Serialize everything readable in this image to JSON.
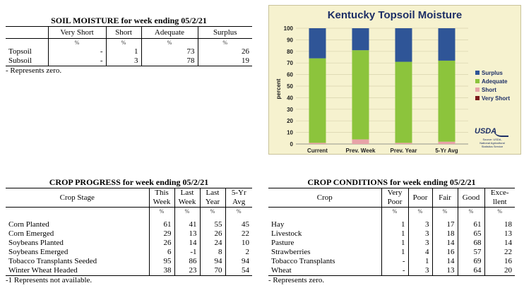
{
  "soil": {
    "title": "SOIL MOISTURE for week ending 05/2/21",
    "columns": [
      "Very Short",
      "Short",
      "Adequate",
      "Surplus"
    ],
    "pct": "%",
    "rows": [
      {
        "label": "Topsoil",
        "values": [
          "-",
          "1",
          "73",
          "26"
        ]
      },
      {
        "label": "Subsoil",
        "values": [
          "-",
          "3",
          "78",
          "19"
        ]
      }
    ],
    "note": "- Represents zero."
  },
  "progress": {
    "title": "CROP PROGRESS for week ending 05/2/21",
    "stage_header": "Crop Stage",
    "col_this": [
      "This",
      "Week"
    ],
    "col_last": [
      "Last",
      "Week"
    ],
    "col_lastyear": [
      "Last",
      "Year"
    ],
    "col_avg": [
      "5-Yr",
      "Avg"
    ],
    "pct": "%",
    "rows": [
      {
        "label": "Corn Planted",
        "values": [
          "61",
          "41",
          "55",
          "45"
        ]
      },
      {
        "label": "Corn Emerged",
        "values": [
          "29",
          "13",
          "26",
          "22"
        ]
      },
      {
        "label": "Soybeans Planted",
        "values": [
          "26",
          "14",
          "24",
          "10"
        ]
      },
      {
        "label": "Soybeans Emerged",
        "values": [
          "6",
          "-1",
          "8",
          "2"
        ]
      },
      {
        "label": "Tobacco Transplants Seeded",
        "values": [
          "95",
          "86",
          "94",
          "94"
        ]
      },
      {
        "label": "Winter Wheat Headed",
        "values": [
          "38",
          "23",
          "70",
          "54"
        ]
      }
    ],
    "note": "-1 Represents not available."
  },
  "conditions": {
    "title": "CROP CONDITIONS for week ending 05/2/21",
    "crop_header": "Crop",
    "col_vp": [
      "Very",
      "Poor"
    ],
    "col_poor": "Poor",
    "col_fair": "Fair",
    "col_good": "Good",
    "col_exc": [
      "Exce-",
      "llent"
    ],
    "pct": "%",
    "rows": [
      {
        "label": "Hay",
        "values": [
          "1",
          "3",
          "17",
          "61",
          "18"
        ]
      },
      {
        "label": "Livestock",
        "values": [
          "1",
          "3",
          "18",
          "65",
          "13"
        ]
      },
      {
        "label": "Pasture",
        "values": [
          "1",
          "3",
          "14",
          "68",
          "14"
        ]
      },
      {
        "label": "Strawberries",
        "values": [
          "1",
          "4",
          "16",
          "57",
          "22"
        ]
      },
      {
        "label": "Tobacco Transplants",
        "values": [
          "-",
          "1",
          "14",
          "69",
          "16"
        ]
      },
      {
        "label": "Wheat",
        "values": [
          "-",
          "3",
          "13",
          "64",
          "20"
        ]
      }
    ],
    "note": "- Represents zero."
  },
  "chart_data": {
    "type": "bar",
    "stacked": true,
    "title": "Kentucky Topsoil Moisture",
    "ylabel": "percent",
    "ylim": [
      0,
      100
    ],
    "yticks": [
      0,
      10,
      20,
      30,
      40,
      50,
      60,
      70,
      80,
      90,
      100
    ],
    "categories": [
      "Current",
      "Prev. Week",
      "Prev. Year",
      "5-Yr Avg"
    ],
    "series": [
      {
        "name": "Very Short",
        "color": "#7a1a1a",
        "values": [
          0,
          0,
          0,
          0
        ]
      },
      {
        "name": "Short",
        "color": "#e8a3a8",
        "values": [
          1,
          4,
          1,
          2
        ]
      },
      {
        "name": "Adequate",
        "color": "#8cc43c",
        "values": [
          73,
          77,
          70,
          70
        ]
      },
      {
        "name": "Surplus",
        "color": "#2f5597",
        "values": [
          26,
          19,
          29,
          28
        ]
      }
    ],
    "legend_order": [
      "Surplus",
      "Adequate",
      "Short",
      "Very Short"
    ],
    "legend_position": "right",
    "logo_text": "USDA",
    "source_text": [
      "Source: USDA,",
      "National Agricultural",
      "Statistics Service"
    ]
  }
}
